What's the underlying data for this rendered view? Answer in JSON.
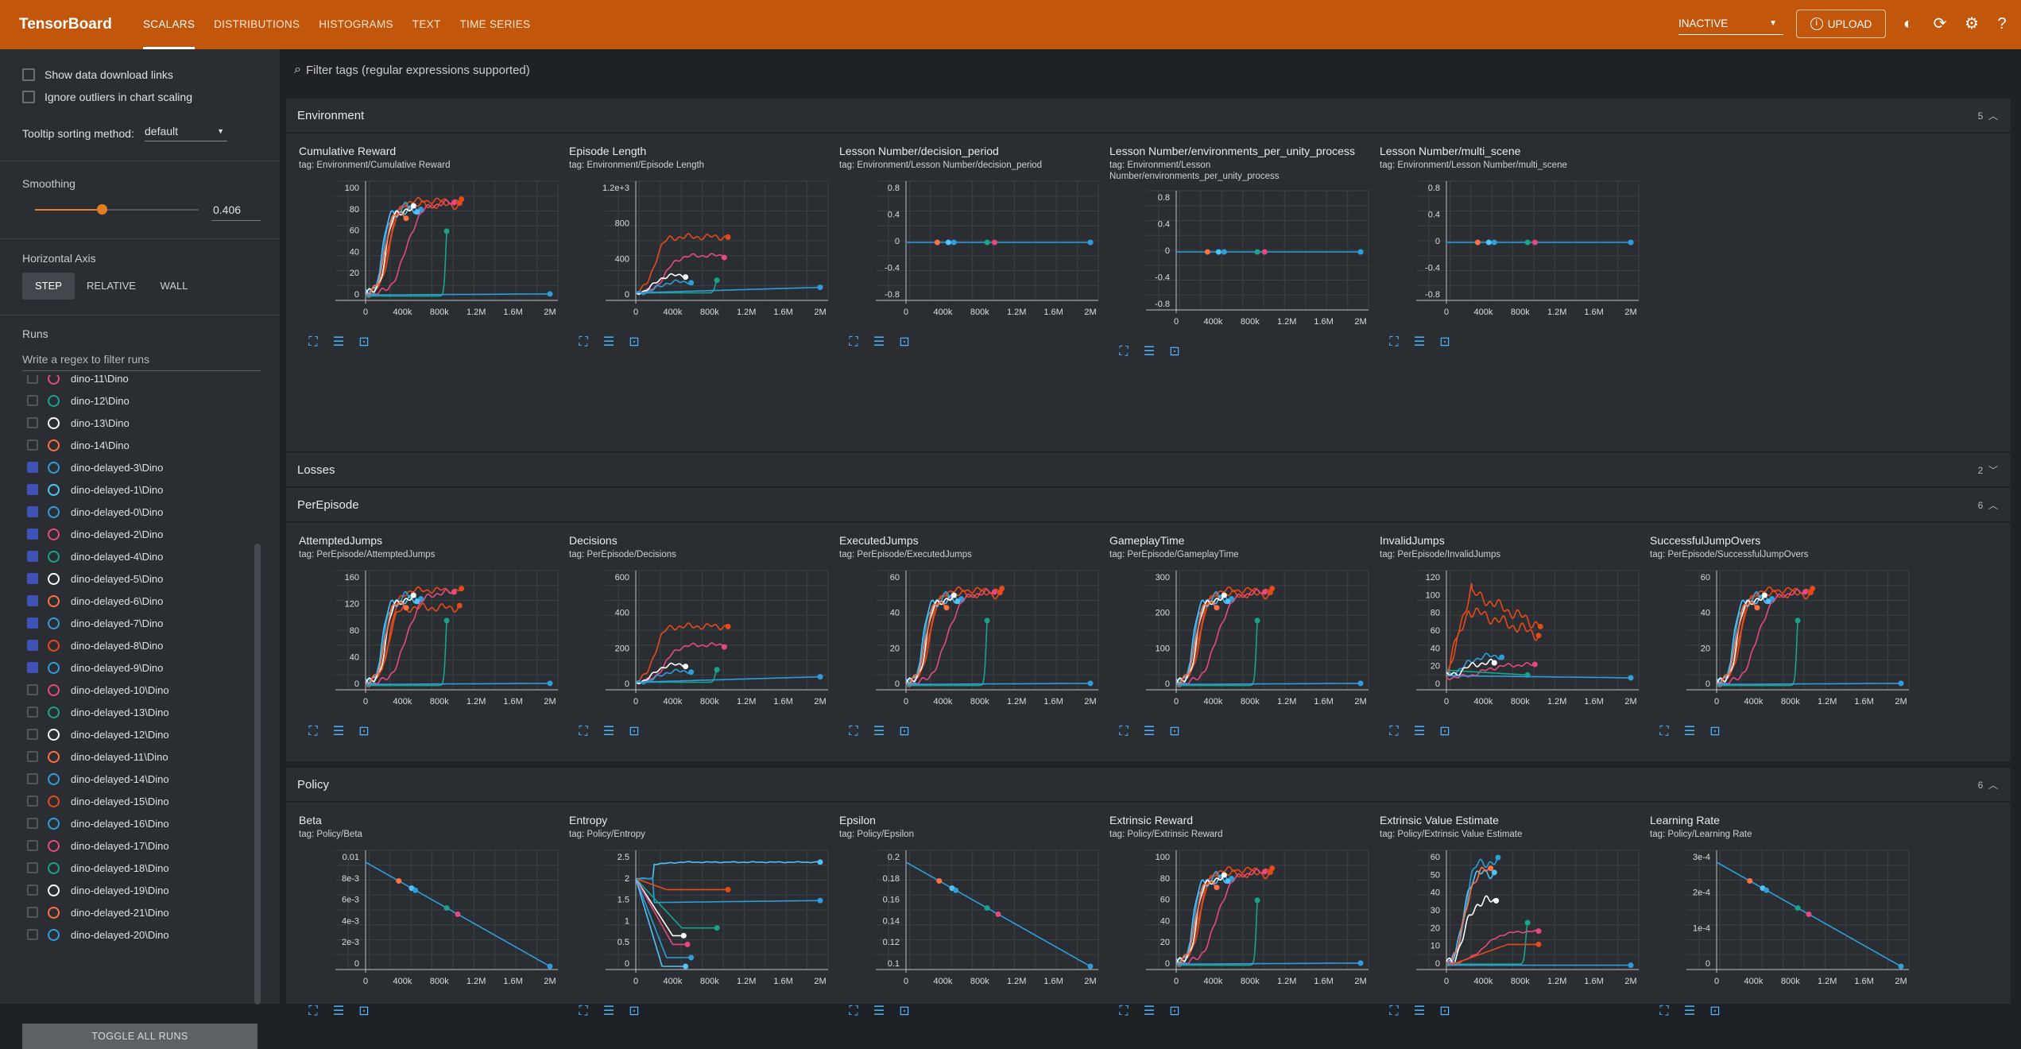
{
  "app": {
    "title": "TensorBoard"
  },
  "nav": {
    "tabs": [
      "SCALARS",
      "DISTRIBUTIONS",
      "HISTOGRAMS",
      "TEXT",
      "TIME SERIES"
    ],
    "active": "SCALARS"
  },
  "toolbar": {
    "run_selector": "INACTIVE",
    "upload_label": "UPLOAD"
  },
  "sidebar": {
    "show_download": "Show data download links",
    "ignore_outliers": "Ignore outliers in chart scaling",
    "tooltip_label": "Tooltip sorting method:",
    "tooltip_value": "default",
    "smoothing_label": "Smoothing",
    "smoothing_value": "0.406",
    "smoothing_fraction": 0.406,
    "horizontal_axis_label": "Horizontal Axis",
    "axis_options": [
      "STEP",
      "RELATIVE",
      "WALL"
    ],
    "axis_active": "STEP",
    "runs_label": "Runs",
    "runs_filter_placeholder": "Write a regex to filter runs",
    "toggle_all": "TOGGLE ALL RUNS",
    "runs": [
      {
        "name": "dino-11\\Dino",
        "checked": false,
        "color": "#e64980"
      },
      {
        "name": "dino-12\\Dino",
        "checked": false,
        "color": "#1aa38a"
      },
      {
        "name": "dino-13\\Dino",
        "checked": false,
        "color": "#ffffff"
      },
      {
        "name": "dino-14\\Dino",
        "checked": false,
        "color": "#ff7043"
      },
      {
        "name": "dino-delayed-3\\Dino",
        "checked": true,
        "color": "#2f9dd9"
      },
      {
        "name": "dino-delayed-1\\Dino",
        "checked": true,
        "color": "#4fc3f7"
      },
      {
        "name": "dino-delayed-0\\Dino",
        "checked": true,
        "color": "#2f9dd9"
      },
      {
        "name": "dino-delayed-2\\Dino",
        "checked": true,
        "color": "#e64980"
      },
      {
        "name": "dino-delayed-4\\Dino",
        "checked": true,
        "color": "#1aa38a"
      },
      {
        "name": "dino-delayed-5\\Dino",
        "checked": true,
        "color": "#ffffff"
      },
      {
        "name": "dino-delayed-6\\Dino",
        "checked": true,
        "color": "#ff7043"
      },
      {
        "name": "dino-delayed-7\\Dino",
        "checked": true,
        "color": "#2f9dd9"
      },
      {
        "name": "dino-delayed-8\\Dino",
        "checked": true,
        "color": "#e64a19"
      },
      {
        "name": "dino-delayed-9\\Dino",
        "checked": true,
        "color": "#2f9dd9"
      },
      {
        "name": "dino-delayed-10\\Dino",
        "checked": false,
        "color": "#e64980"
      },
      {
        "name": "dino-delayed-13\\Dino",
        "checked": false,
        "color": "#1aa38a"
      },
      {
        "name": "dino-delayed-12\\Dino",
        "checked": false,
        "color": "#ffffff"
      },
      {
        "name": "dino-delayed-11\\Dino",
        "checked": false,
        "color": "#ff7043"
      },
      {
        "name": "dino-delayed-14\\Dino",
        "checked": false,
        "color": "#2f9dd9"
      },
      {
        "name": "dino-delayed-15\\Dino",
        "checked": false,
        "color": "#e64a19"
      },
      {
        "name": "dino-delayed-16\\Dino",
        "checked": false,
        "color": "#2f9dd9"
      },
      {
        "name": "dino-delayed-17\\Dino",
        "checked": false,
        "color": "#e64980"
      },
      {
        "name": "dino-delayed-18\\Dino",
        "checked": false,
        "color": "#1aa38a"
      },
      {
        "name": "dino-delayed-19\\Dino",
        "checked": false,
        "color": "#ffffff"
      },
      {
        "name": "dino-delayed-21\\Dino",
        "checked": false,
        "color": "#ff7043"
      },
      {
        "name": "dino-delayed-20\\Dino",
        "checked": false,
        "color": "#2f9dd9"
      }
    ]
  },
  "main": {
    "filter_placeholder": "Filter tags (regular expressions supported)",
    "groups": [
      {
        "name": "Environment",
        "count": "5"
      },
      {
        "name": "Losses",
        "count": "2"
      },
      {
        "name": "PerEpisode",
        "count": "6"
      },
      {
        "name": "Policy",
        "count": "6"
      }
    ]
  },
  "x_ticks": [
    "0",
    "400k",
    "800k",
    "1.2M",
    "1.6M",
    "2M"
  ],
  "charts": {
    "environment": [
      {
        "title": "Cumulative Reward",
        "tag": "tag: Environment/Cumulative Reward",
        "yticks": [
          "100",
          "80",
          "60",
          "40",
          "20",
          "0"
        ],
        "style": "reward"
      },
      {
        "title": "Episode Length",
        "tag": "tag: Environment/Episode Length",
        "yticks": [
          "1.2e+3",
          "800",
          "400",
          "0"
        ],
        "style": "length"
      },
      {
        "title": "Lesson Number/decision_period",
        "tag": "tag: Environment/Lesson Number/decision_period",
        "yticks": [
          "0.8",
          "0.4",
          "0",
          "-0.4",
          "-0.8"
        ],
        "style": "flat"
      },
      {
        "title": "Lesson Number/environments_per_unity_process",
        "tag": "tag: Environment/Lesson Number/environments_per_unity_process",
        "yticks": [
          "0.8",
          "0.4",
          "0",
          "-0.4",
          "-0.8"
        ],
        "style": "flat"
      },
      {
        "title": "Lesson Number/multi_scene",
        "tag": "tag: Environment/Lesson Number/multi_scene",
        "yticks": [
          "0.8",
          "0.4",
          "0",
          "-0.4",
          "-0.8"
        ],
        "style": "flat"
      }
    ],
    "perepisode": [
      {
        "title": "AttemptedJumps",
        "tag": "tag: PerEpisode/AttemptedJumps",
        "yticks": [
          "160",
          "120",
          "80",
          "40",
          "0"
        ],
        "style": "jumps"
      },
      {
        "title": "Decisions",
        "tag": "tag: PerEpisode/Decisions",
        "yticks": [
          "600",
          "400",
          "200",
          "0"
        ],
        "style": "length"
      },
      {
        "title": "ExecutedJumps",
        "tag": "tag: PerEpisode/ExecutedJumps",
        "yticks": [
          "60",
          "40",
          "20",
          "0"
        ],
        "style": "reward"
      },
      {
        "title": "GameplayTime",
        "tag": "tag: PerEpisode/GameplayTime",
        "yticks": [
          "300",
          "200",
          "100",
          "0"
        ],
        "style": "reward"
      },
      {
        "title": "InvalidJumps",
        "tag": "tag: PerEpisode/InvalidJumps",
        "yticks": [
          "120",
          "100",
          "80",
          "60",
          "40",
          "20",
          "0"
        ],
        "style": "invalid"
      },
      {
        "title": "SuccessfulJumpOvers",
        "tag": "tag: PerEpisode/SuccessfulJumpOvers",
        "yticks": [
          "60",
          "40",
          "20",
          "0"
        ],
        "style": "reward"
      }
    ],
    "policy": [
      {
        "title": "Beta",
        "tag": "tag: Policy/Beta",
        "yticks": [
          "0.01",
          "8e-3",
          "6e-3",
          "4e-3",
          "2e-3",
          "0"
        ],
        "style": "decay"
      },
      {
        "title": "Entropy",
        "tag": "tag: Policy/Entropy",
        "yticks": [
          "2.5",
          "2",
          "1.5",
          "1",
          "0.5",
          "0"
        ],
        "style": "entropy"
      },
      {
        "title": "Epsilon",
        "tag": "tag: Policy/Epsilon",
        "yticks": [
          "0.2",
          "0.18",
          "0.16",
          "0.14",
          "0.12",
          "0.1"
        ],
        "style": "decay"
      },
      {
        "title": "Extrinsic Reward",
        "tag": "tag: Policy/Extrinsic Reward",
        "yticks": [
          "100",
          "80",
          "60",
          "40",
          "20",
          "0"
        ],
        "style": "reward"
      },
      {
        "title": "Extrinsic Value Estimate",
        "tag": "tag: Policy/Extrinsic Value Estimate",
        "yticks": [
          "60",
          "50",
          "40",
          "30",
          "20",
          "10",
          "0"
        ],
        "style": "value"
      },
      {
        "title": "Learning Rate",
        "tag": "tag: Policy/Learning Rate",
        "yticks": [
          "3e-4",
          "2e-4",
          "1e-4",
          "0"
        ],
        "style": "decay"
      }
    ]
  },
  "colors": {
    "accent": "#c2560a",
    "blue": "#2f9dd9",
    "orange": "#e64a19",
    "pink": "#e64980",
    "teal": "#1aa38a",
    "white": "#ffffff",
    "salmon": "#ff7043",
    "light_blue": "#4fc3f7"
  }
}
